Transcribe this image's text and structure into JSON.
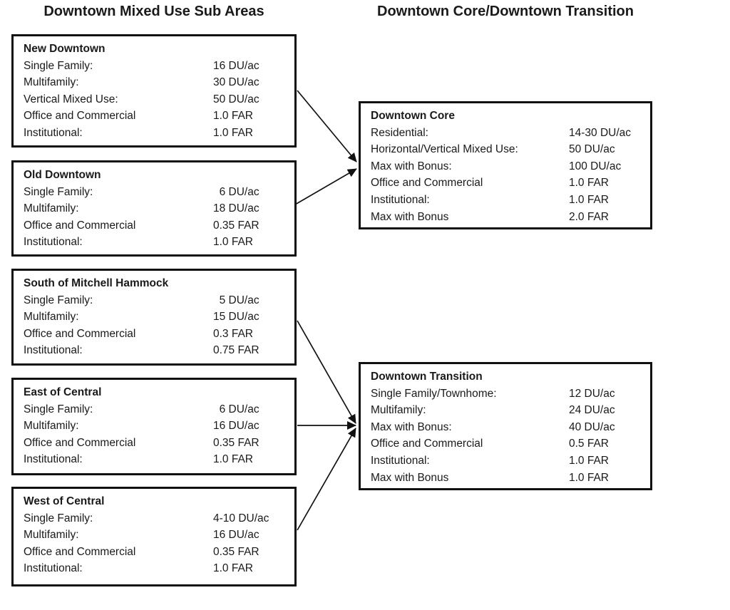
{
  "titles": {
    "left": "Downtown Mixed Use Sub Areas",
    "right": "Downtown Core/Downtown Transition"
  },
  "colors": {
    "text": "#1a1a1a",
    "border": "#111111",
    "background": "#ffffff",
    "arrow": "#111111"
  },
  "sub_areas": [
    {
      "name": "New Downtown",
      "rows": [
        {
          "label": "Single Family:",
          "value": "16 DU/ac"
        },
        {
          "label": "Multifamily:",
          "value": "30 DU/ac"
        },
        {
          "label": "Vertical Mixed Use:",
          "value": "50 DU/ac"
        },
        {
          "label": "Office and Commercial",
          "value": "1.0 FAR"
        },
        {
          "label": "Institutional:",
          "value": "1.0 FAR"
        }
      ]
    },
    {
      "name": "Old Downtown",
      "rows": [
        {
          "label": "Single Family:",
          "value": "  6 DU/ac"
        },
        {
          "label": "Multifamily:",
          "value": "18 DU/ac"
        },
        {
          "label": "Office and Commercial",
          "value": "0.35 FAR"
        },
        {
          "label": "Institutional:",
          "value": "1.0 FAR"
        }
      ]
    },
    {
      "name": "South of Mitchell Hammock",
      "rows": [
        {
          "label": "Single Family:",
          "value": "  5 DU/ac"
        },
        {
          "label": "Multifamily:",
          "value": "15 DU/ac"
        },
        {
          "label": "Office and Commercial",
          "value": "0.3 FAR"
        },
        {
          "label": "Institutional:",
          "value": "0.75 FAR"
        }
      ]
    },
    {
      "name": "East of Central",
      "rows": [
        {
          "label": "Single Family:",
          "value": "  6 DU/ac"
        },
        {
          "label": "Multifamily:",
          "value": "16 DU/ac"
        },
        {
          "label": "Office and Commercial",
          "value": "0.35 FAR"
        },
        {
          "label": "Institutional:",
          "value": "1.0 FAR"
        }
      ]
    },
    {
      "name": "West of Central",
      "rows": [
        {
          "label": "Single Family:",
          "value": "4-10 DU/ac"
        },
        {
          "label": "Multifamily:",
          "value": "16 DU/ac"
        },
        {
          "label": "Office and Commercial",
          "value": "0.35 FAR"
        },
        {
          "label": "Institutional:",
          "value": "1.0 FAR"
        }
      ]
    }
  ],
  "targets": [
    {
      "name": "Downtown Core",
      "rows": [
        {
          "label": "Residential:",
          "value": "14-30 DU/ac"
        },
        {
          "label": "Horizontal/Vertical Mixed Use:",
          "value": "50 DU/ac"
        },
        {
          "label": "Max with Bonus:",
          "value": "100 DU/ac"
        },
        {
          "label": "Office and Commercial",
          "value": "1.0 FAR"
        },
        {
          "label": "Institutional:",
          "value": "1.0 FAR"
        },
        {
          "label": "Max with Bonus",
          "value": "2.0 FAR"
        }
      ]
    },
    {
      "name": "Downtown Transition",
      "rows": [
        {
          "label": "Single Family/Townhome:",
          "value": "12 DU/ac"
        },
        {
          "label": "Multifamily:",
          "value": "24 DU/ac"
        },
        {
          "label": "Max with Bonus:",
          "value": "40 DU/ac"
        },
        {
          "label": "Office and Commercial",
          "value": "0.5 FAR"
        },
        {
          "label": "Institutional:",
          "value": "1.0 FAR"
        },
        {
          "label": "Max with Bonus",
          "value": "1.0 FAR"
        }
      ]
    }
  ],
  "arrows": [
    {
      "from": "New Downtown",
      "to": "Downtown Core"
    },
    {
      "from": "Old Downtown",
      "to": "Downtown Core"
    },
    {
      "from": "South of Mitchell Hammock",
      "to": "Downtown Transition"
    },
    {
      "from": "East of Central",
      "to": "Downtown Transition"
    },
    {
      "from": "West of Central",
      "to": "Downtown Transition"
    }
  ]
}
